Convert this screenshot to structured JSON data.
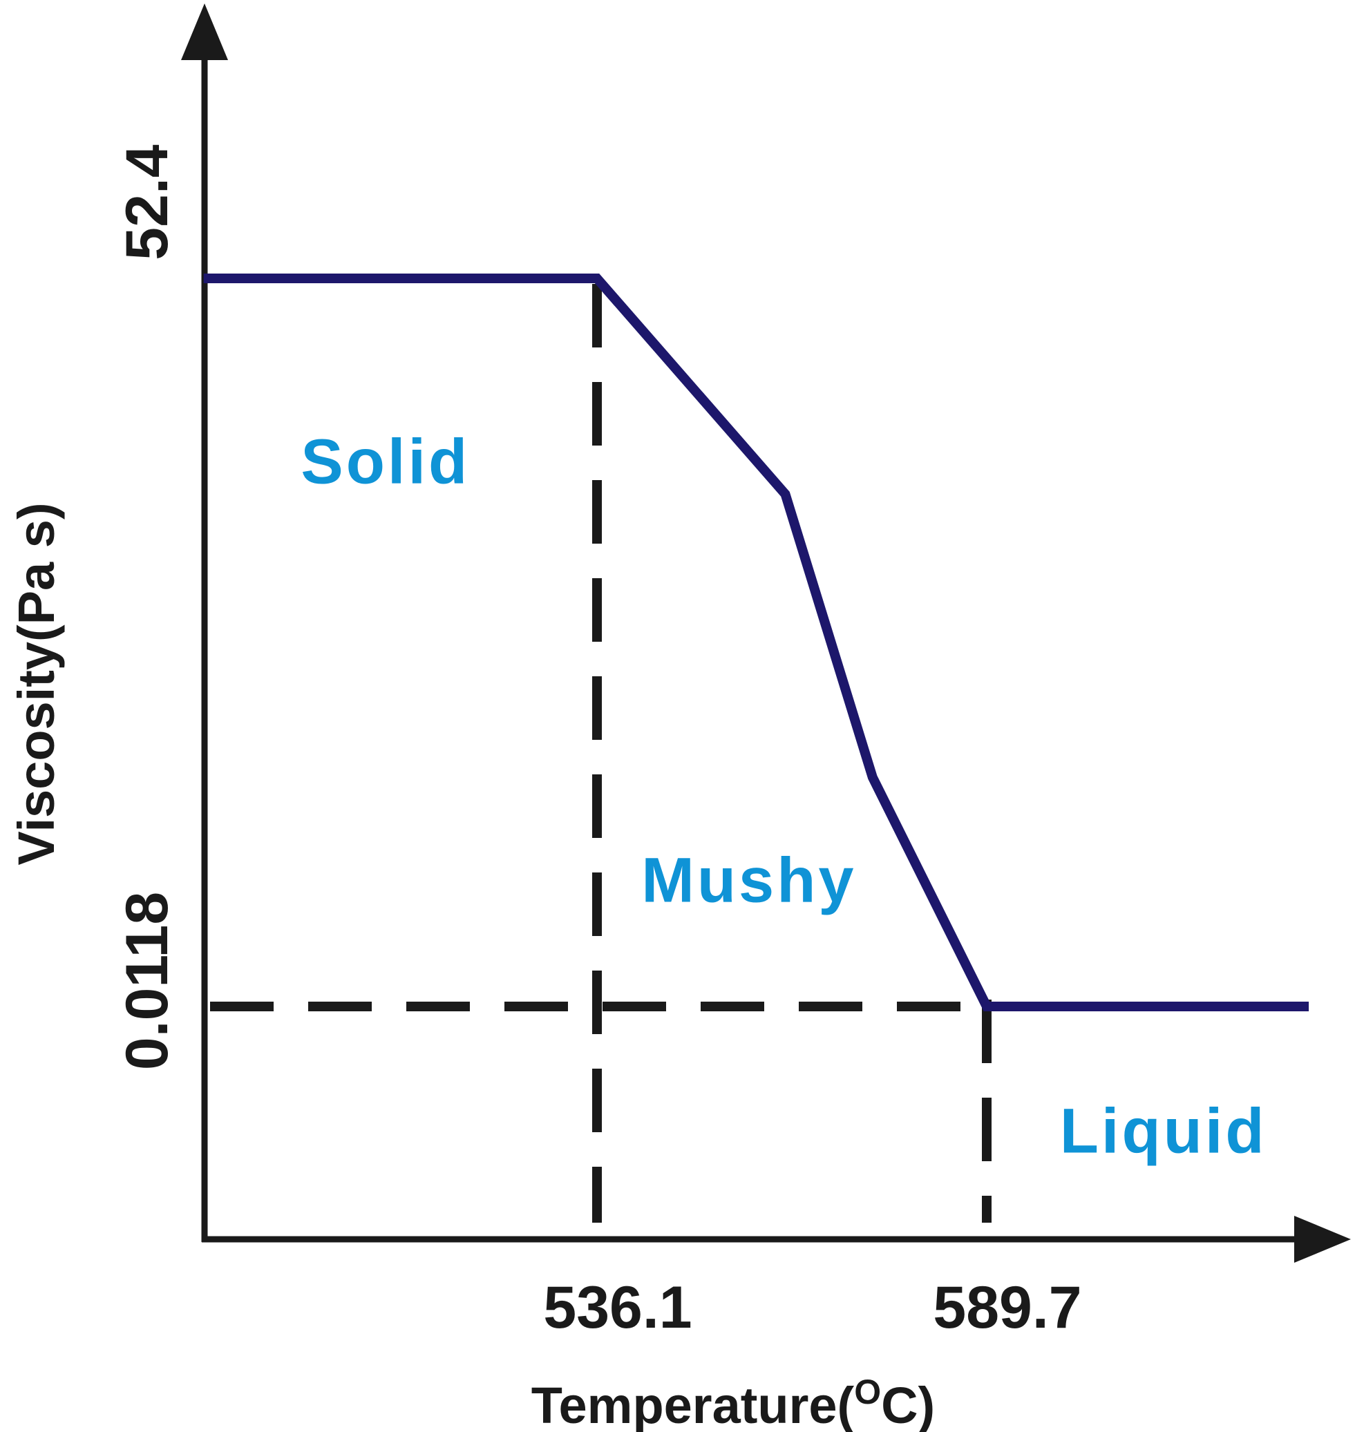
{
  "chart_data": {
    "type": "line",
    "xlabel": "Temperature(",
    "xlabel_sup": "O",
    "xlabel_end": "C)",
    "ylabel": "Viscosity(Pa s)",
    "x_ticks": [
      {
        "id": "solidus",
        "label": "536.1",
        "value": 536.1
      },
      {
        "id": "liquidus",
        "label": "589.7",
        "value": 589.7
      }
    ],
    "y_ticks": [
      {
        "id": "high",
        "label": "52.4",
        "value": 52.4
      },
      {
        "id": "low",
        "label": "0.0118",
        "value": 0.0118
      }
    ],
    "series": [
      {
        "color": "#1d176b",
        "points": [
          {
            "x": 482,
            "y": 52.4
          },
          {
            "x": 536.1,
            "y": 52.4
          },
          {
            "x": 562,
            "y": 4.35
          },
          {
            "x": 574,
            "y": 0.166
          },
          {
            "x": 589.7,
            "y": 0.0118
          },
          {
            "x": 634,
            "y": 0.0118
          }
        ]
      }
    ],
    "reference_lines": [
      {
        "id": "vline-solidus",
        "orientation": "vertical",
        "x": 536.1
      },
      {
        "id": "vline-liquidus",
        "orientation": "vertical",
        "x": 589.7
      },
      {
        "id": "hline-low",
        "orientation": "horizontal",
        "y": 0.0118
      }
    ],
    "regions": [
      {
        "id": "solid",
        "label": "Solid",
        "x": 507,
        "y": 4.93
      },
      {
        "id": "mushy",
        "label": "Mushy",
        "x": 557,
        "y": 0.0395
      },
      {
        "id": "liquid",
        "label": "Liquid",
        "x": 614,
        "y": 0.00219
      }
    ],
    "colors": {
      "curve": "#1d176b",
      "axes": "#1a1a1a",
      "region_text": "#0f93d6"
    }
  }
}
